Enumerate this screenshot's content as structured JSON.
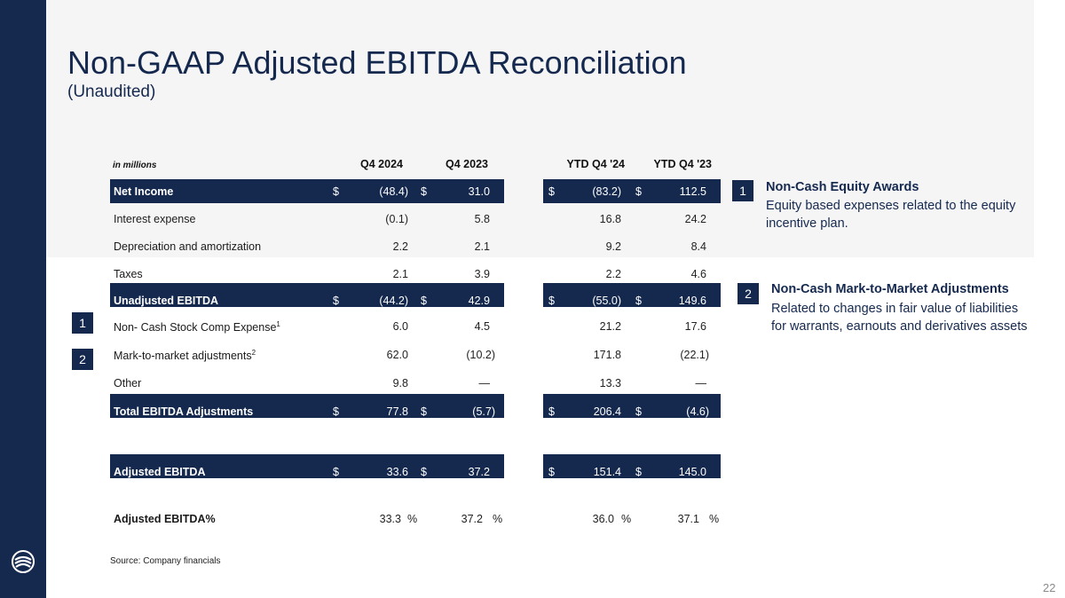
{
  "header": {
    "title": "Non-GAAP Adjusted EBITDA Reconciliation",
    "subtitle": "(Unaudited)"
  },
  "table": {
    "unit_label": "in millions",
    "columns": [
      "Q4 2024",
      "Q4 2023",
      "YTD Q4 '24",
      "YTD Q4 '23"
    ],
    "currency_symbol": "$",
    "rows": [
      {
        "label": "Net Income",
        "values": [
          "(48.4)",
          "31.0",
          "(83.2)",
          "112.5"
        ]
      },
      {
        "label": "Interest expense",
        "values": [
          "(0.1)",
          "5.8",
          "16.8",
          "24.2"
        ]
      },
      {
        "label": "Depreciation and amortization",
        "values": [
          "2.2",
          "2.1",
          "9.2",
          "8.4"
        ]
      },
      {
        "label": "Taxes",
        "values": [
          "2.1",
          "3.9",
          "2.2",
          "4.6"
        ]
      },
      {
        "label": "Unadjusted EBITDA",
        "values": [
          "(44.2)",
          "42.9",
          "(55.0)",
          "149.6"
        ]
      },
      {
        "label": "Non- Cash Stock  Comp Expense",
        "footnote": "1",
        "values": [
          "6.0",
          "4.5",
          "21.2",
          "17.6"
        ]
      },
      {
        "label": "Mark-to-market adjustments",
        "footnote": "2",
        "values": [
          "62.0",
          "(10.2)",
          "171.8",
          "(22.1)"
        ]
      },
      {
        "label": "Other",
        "values": [
          "9.8",
          "—",
          "13.3",
          "—"
        ]
      },
      {
        "label": "Total EBITDA Adjustments",
        "values": [
          "77.8",
          "(5.7)",
          "206.4",
          "(4.6)"
        ]
      },
      {
        "label": "Adjusted EBITDA",
        "values": [
          "33.6",
          "37.2",
          "151.4",
          "145.0"
        ]
      },
      {
        "label": "Adjusted EBITDA%",
        "values": [
          "33.3",
          "37.2",
          "36.0",
          "37.1"
        ],
        "suffix": "%"
      }
    ]
  },
  "markers": {
    "one": "1",
    "two": "2"
  },
  "notes": [
    {
      "number": "1",
      "title": "Non-Cash Equity Awards",
      "body": "Equity based expenses related to the equity incentive plan."
    },
    {
      "number": "2",
      "title": "Non-Cash Mark-to-Market Adjustments",
      "body": "Related to changes in fair value of liabilities for warrants, earnouts and derivatives assets"
    }
  ],
  "source": "Source: Company financials",
  "page_number": "22",
  "colors": {
    "brand_navy": "#15294f",
    "panel_grey": "#f5f5f6"
  }
}
